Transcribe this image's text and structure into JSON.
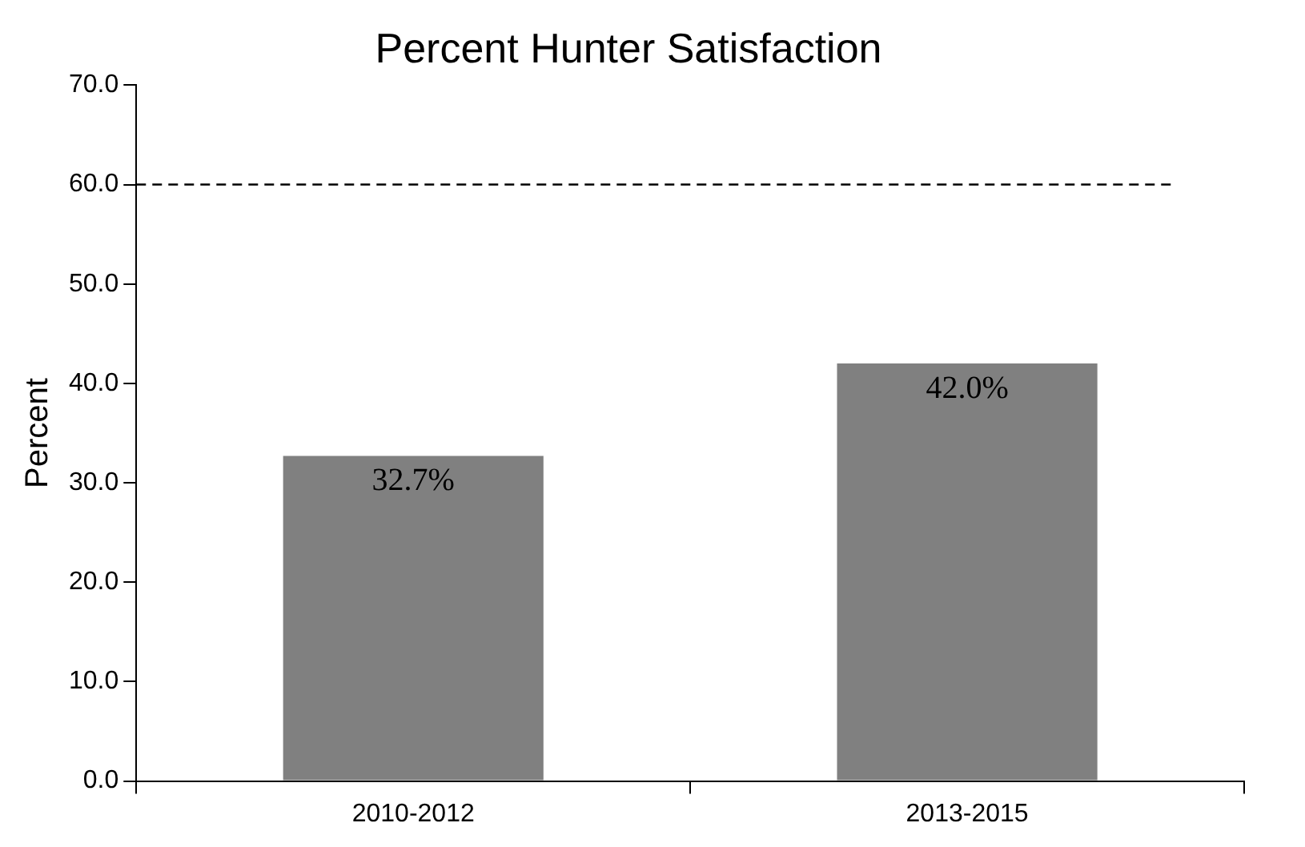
{
  "chart_data": {
    "type": "bar",
    "title": "Percent Hunter Satisfaction",
    "ylabel": "Percent",
    "categories": [
      "2010-2012",
      "2013-2015"
    ],
    "series": [
      {
        "color": "#808080",
        "values": [
          32.7,
          42.0
        ],
        "value_labels": [
          "32.7%",
          "42.0%"
        ]
      }
    ],
    "ylim": [
      0,
      70
    ],
    "yticks": [
      {
        "value": 0,
        "label": "0.0"
      },
      {
        "value": 10,
        "label": "10.0"
      },
      {
        "value": 20,
        "label": "20.0"
      },
      {
        "value": 30,
        "label": "30.0"
      },
      {
        "value": 40,
        "label": "40.0"
      },
      {
        "value": 50,
        "label": "50.0"
      },
      {
        "value": 60,
        "label": "60.0"
      },
      {
        "value": 70,
        "label": "70.0"
      }
    ],
    "ref_lines": [
      {
        "axis": "y",
        "value": 60,
        "color": "#000000",
        "line_style": "dashed"
      }
    ],
    "grid": false,
    "legend": false
  }
}
